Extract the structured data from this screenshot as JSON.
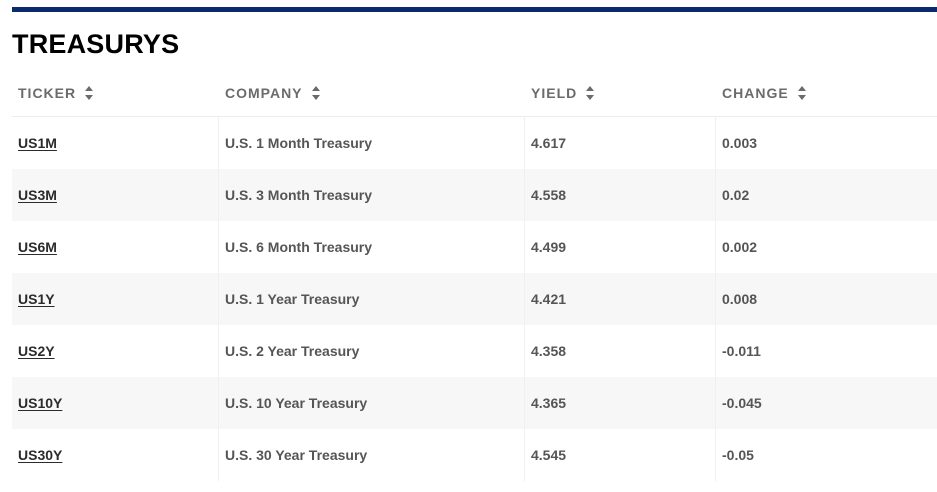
{
  "section_title": "TREASURYS",
  "table": {
    "headers": {
      "ticker": "TICKER",
      "company": "COMPANY",
      "yield": "YIELD",
      "change": "CHANGE"
    },
    "rows": [
      {
        "ticker": "US1M",
        "company": "U.S. 1 Month Treasury",
        "yield": "4.617",
        "change": "0.003"
      },
      {
        "ticker": "US3M",
        "company": "U.S. 3 Month Treasury",
        "yield": "4.558",
        "change": "0.02"
      },
      {
        "ticker": "US6M",
        "company": "U.S. 6 Month Treasury",
        "yield": "4.499",
        "change": "0.002"
      },
      {
        "ticker": "US1Y",
        "company": "U.S. 1 Year Treasury",
        "yield": "4.421",
        "change": "0.008"
      },
      {
        "ticker": "US2Y",
        "company": "U.S. 2 Year Treasury",
        "yield": "4.358",
        "change": "-0.011"
      },
      {
        "ticker": "US10Y",
        "company": "U.S. 10 Year Treasury",
        "yield": "4.365",
        "change": "-0.045"
      },
      {
        "ticker": "US30Y",
        "company": "U.S. 30 Year Treasury",
        "yield": "4.545",
        "change": "-0.05"
      }
    ]
  },
  "colors": {
    "top_rule": "#0a2a6b",
    "header_text": "#6b6b6b",
    "row_stripe": "#f7f7f7"
  },
  "icons": {
    "sort": "sort-icon"
  }
}
